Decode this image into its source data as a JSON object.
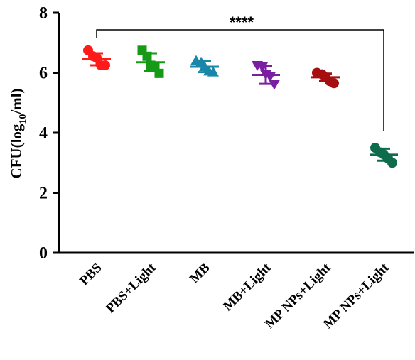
{
  "chart_data": {
    "type": "scatter",
    "ylabel_main": "CFU(log",
    "ylabel_sub": "10",
    "ylabel_tail": "/ml)",
    "ylim": [
      0,
      8
    ],
    "yticks": [
      "0",
      "2",
      "4",
      "6",
      "8"
    ],
    "grid": false,
    "significance": {
      "label": "****",
      "from": "PBS",
      "to": "MP NPs+Light"
    },
    "groups": [
      {
        "name": "PBS",
        "color": "#ff1a1a",
        "marker": "circle",
        "mean": 6.45,
        "sd": 0.2,
        "points": [
          6.75,
          6.55,
          6.5,
          6.25,
          6.25
        ]
      },
      {
        "name": "PBS+Light",
        "color": "#159a15",
        "marker": "square",
        "mean": 6.35,
        "sd": 0.3,
        "points": [
          6.75,
          6.55,
          6.25,
          6.2,
          5.98
        ]
      },
      {
        "name": "MB",
        "color": "#1a87a8",
        "marker": "triangle-up",
        "mean": 6.2,
        "sd": 0.18,
        "points": [
          6.4,
          6.35,
          6.2,
          6.05,
          6.02
        ]
      },
      {
        "name": "MB+Light",
        "color": "#7a1fa2",
        "marker": "triangle-down",
        "mean": 5.93,
        "sd": 0.3,
        "points": [
          6.25,
          6.2,
          5.95,
          5.88,
          5.62
        ]
      },
      {
        "name": "MP NPs+Light",
        "color": "#a50f0f",
        "marker": "circle",
        "mean": 5.85,
        "sd": 0.12,
        "points": [
          6.0,
          5.95,
          5.85,
          5.72,
          5.65
        ]
      },
      {
        "name": "MP NPs+Light",
        "color": "#0e6b4b",
        "marker": "circle",
        "mean": 3.27,
        "sd": 0.2,
        "points": [
          3.5,
          3.35,
          3.28,
          3.15,
          3.0
        ]
      }
    ]
  }
}
